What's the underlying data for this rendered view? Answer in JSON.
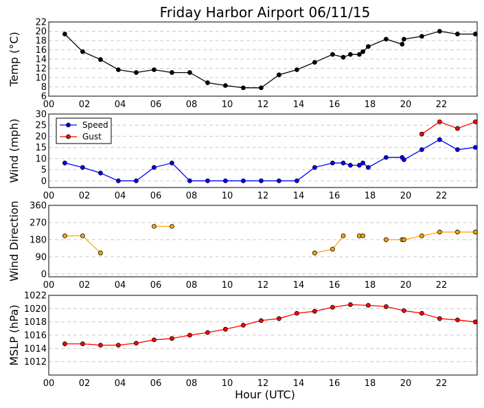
{
  "title": "Friday Harbor Airport 06/11/15",
  "xlabel": "Hour (UTC)",
  "x_ticks": [
    "00",
    "02",
    "04",
    "06",
    "08",
    "10",
    "12",
    "14",
    "16",
    "18",
    "20",
    "22"
  ],
  "chart_data": [
    {
      "type": "line",
      "name": "temperature",
      "ylabel": "Temp (°C)",
      "ylim": [
        6,
        22
      ],
      "yticks": [
        6,
        8,
        10,
        12,
        14,
        16,
        18,
        20,
        22
      ],
      "grid": true,
      "series": [
        {
          "name": "Temp",
          "color": "#000000",
          "x": [
            0.9,
            1.9,
            2.9,
            3.9,
            4.9,
            5.9,
            6.9,
            7.9,
            8.9,
            9.9,
            10.9,
            11.9,
            12.9,
            13.9,
            14.9,
            15.9,
            16.5,
            16.9,
            17.4,
            17.6,
            17.9,
            18.9,
            19.8,
            19.9,
            20.9,
            21.9,
            22.9,
            23.9
          ],
          "values": [
            19.4,
            15.6,
            13.9,
            11.7,
            11.1,
            11.7,
            11.1,
            11.1,
            8.9,
            8.3,
            7.8,
            7.8,
            10.6,
            11.7,
            13.3,
            15.0,
            14.4,
            15.0,
            15.0,
            15.6,
            16.7,
            18.3,
            17.2,
            18.3,
            18.9,
            20.0,
            19.4,
            19.4
          ]
        }
      ]
    },
    {
      "type": "line",
      "name": "wind",
      "ylabel": "Wind (mph)",
      "ylim": [
        -3,
        30
      ],
      "yticks": [
        0,
        5,
        10,
        15,
        20,
        25,
        30
      ],
      "grid": true,
      "legend": "top-left",
      "series": [
        {
          "name": "Speed",
          "color": "#0000ff",
          "x": [
            0.9,
            1.9,
            2.9,
            3.9,
            4.9,
            5.9,
            6.9,
            7.9,
            8.9,
            9.9,
            10.9,
            11.9,
            12.9,
            13.9,
            14.9,
            15.9,
            16.5,
            16.9,
            17.4,
            17.6,
            17.9,
            18.9,
            19.8,
            19.9,
            20.9,
            21.9,
            22.9,
            23.9
          ],
          "values": [
            8,
            6,
            3.5,
            0,
            0,
            6,
            8,
            0,
            0,
            0,
            0,
            0,
            0,
            0,
            6,
            8,
            8,
            7,
            7,
            8,
            6,
            10.5,
            10.5,
            9.5,
            14,
            18.5,
            14,
            15
          ]
        },
        {
          "name": "Gust",
          "color": "#ff0000",
          "x": [
            20.9,
            21.9,
            22.9,
            23.9
          ],
          "values": [
            21,
            26.5,
            23.5,
            26.5
          ]
        }
      ]
    },
    {
      "type": "line",
      "name": "wind-direction",
      "ylabel": "Wind Direction",
      "ylim": [
        -15,
        360
      ],
      "yticks": [
        0,
        90,
        180,
        270,
        360
      ],
      "grid": true,
      "series": [
        {
          "name": "Direction",
          "color": "#ffa500",
          "segments": [
            {
              "x": [
                0.9,
                1.9,
                2.9
              ],
              "values": [
                200,
                200,
                110
              ]
            },
            {
              "x": [
                5.9,
                6.9
              ],
              "values": [
                250,
                250
              ]
            },
            {
              "x": [
                14.9,
                15.9,
                16.5
              ],
              "values": [
                110,
                130,
                200
              ]
            },
            {
              "x": [
                17.4,
                17.6
              ],
              "values": [
                200,
                200
              ]
            },
            {
              "x": [
                18.9,
                19.8,
                19.9,
                20.9,
                21.9,
                22.9,
                23.9
              ],
              "values": [
                180,
                180,
                180,
                200,
                220,
                220,
                220
              ]
            }
          ]
        }
      ]
    },
    {
      "type": "line",
      "name": "mslp",
      "ylabel": "MSLP (hPa)",
      "ylim": [
        1010,
        1022
      ],
      "yticks": [
        1012,
        1014,
        1016,
        1018,
        1020,
        1022
      ],
      "grid": true,
      "series": [
        {
          "name": "MSLP",
          "color": "#ff0000",
          "x": [
            0.9,
            1.9,
            2.9,
            3.9,
            4.9,
            5.9,
            6.9,
            7.9,
            8.9,
            9.9,
            10.9,
            11.9,
            12.9,
            13.9,
            14.9,
            15.9,
            16.9,
            17.9,
            18.9,
            19.9,
            20.9,
            21.9,
            22.9,
            23.9
          ],
          "values": [
            1014.7,
            1014.7,
            1014.5,
            1014.5,
            1014.8,
            1015.3,
            1015.5,
            1016.0,
            1016.4,
            1016.9,
            1017.5,
            1018.2,
            1018.5,
            1019.3,
            1019.6,
            1020.2,
            1020.6,
            1020.5,
            1020.3,
            1019.7,
            1019.3,
            1018.5,
            1018.3,
            1018.0
          ]
        }
      ]
    }
  ]
}
